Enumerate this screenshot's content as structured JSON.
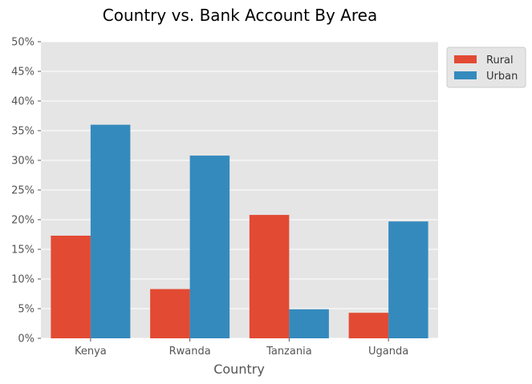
{
  "chart_data": {
    "type": "bar",
    "title": "Country vs. Bank Account By Area",
    "xlabel": "Country",
    "ylabel": "",
    "categories": [
      "Kenya",
      "Rwanda",
      "Tanzania",
      "Uganda"
    ],
    "series": [
      {
        "name": "Rural",
        "values": [
          17.3,
          8.3,
          20.8,
          4.3
        ]
      },
      {
        "name": "Urban",
        "values": [
          36.0,
          30.8,
          4.9,
          19.7
        ]
      }
    ],
    "ylim": [
      0,
      50
    ],
    "yticks": [
      "0%",
      "5%",
      "10%",
      "15%",
      "20%",
      "25%",
      "30%",
      "35%",
      "40%",
      "45%",
      "50%"
    ],
    "grid": true,
    "legend_position": "top-right, outside plot",
    "colors": {
      "Rural": "#E24A33",
      "Urban": "#348ABD",
      "plot_background": "#E5E5E5",
      "grid": "#FFFFFF"
    }
  }
}
